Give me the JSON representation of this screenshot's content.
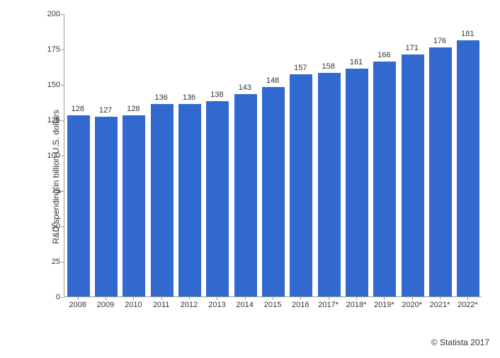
{
  "chart": {
    "type": "bar",
    "ylabel": "R&D spending in billion U.S. dollars",
    "label_fontsize": 12,
    "ylim": [
      0,
      200
    ],
    "ytick_step": 25,
    "yticks": [
      0,
      25,
      50,
      75,
      100,
      125,
      150,
      175,
      200
    ],
    "categories": [
      "2008",
      "2009",
      "2010",
      "2011",
      "2012",
      "2013",
      "2014",
      "2015",
      "2016",
      "2017*",
      "2018*",
      "2019*",
      "2020*",
      "2021*",
      "2022*"
    ],
    "values": [
      128,
      127,
      128,
      136,
      136,
      138,
      143,
      148,
      157,
      158,
      161,
      166,
      171,
      176,
      181
    ],
    "bar_color": "#3169cf",
    "bar_width": 0.82,
    "background_color": "#ffffff",
    "axis_color": "#999999",
    "text_color": "#333333",
    "tick_fontsize": 11,
    "barlabel_fontsize": 11
  },
  "attribution": "© Statista 2017"
}
